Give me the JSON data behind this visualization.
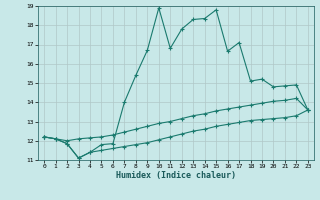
{
  "xlabel": "Humidex (Indice chaleur)",
  "bg_color": "#c8e8e8",
  "line_color": "#1a7a6e",
  "xlim": [
    -0.5,
    23.5
  ],
  "ylim": [
    11,
    19
  ],
  "xticks": [
    0,
    1,
    2,
    3,
    4,
    5,
    6,
    7,
    8,
    9,
    10,
    11,
    12,
    13,
    14,
    15,
    16,
    17,
    18,
    19,
    20,
    21,
    22,
    23
  ],
  "yticks": [
    11,
    12,
    13,
    14,
    15,
    16,
    17,
    18,
    19
  ],
  "series1_x": [
    0,
    1,
    2,
    3,
    4,
    5,
    6,
    7,
    8,
    9,
    10,
    11,
    12,
    13,
    14,
    15,
    16,
    17,
    18,
    19,
    20,
    21,
    22,
    23
  ],
  "series1_y": [
    12.2,
    12.1,
    11.85,
    11.1,
    11.4,
    11.8,
    11.85,
    14.0,
    15.4,
    16.7,
    18.9,
    16.8,
    17.8,
    18.3,
    18.35,
    18.8,
    16.65,
    17.1,
    15.1,
    15.2,
    14.8,
    14.85,
    14.9,
    13.6
  ],
  "series2_x": [
    0,
    1,
    2,
    3,
    4,
    5,
    6,
    7,
    8,
    9,
    10,
    11,
    12,
    13,
    14,
    15,
    16,
    17,
    18,
    19,
    20,
    21,
    22,
    23
  ],
  "series2_y": [
    12.2,
    12.1,
    12.0,
    12.1,
    12.15,
    12.2,
    12.3,
    12.45,
    12.6,
    12.75,
    12.9,
    13.0,
    13.15,
    13.3,
    13.4,
    13.55,
    13.65,
    13.75,
    13.85,
    13.95,
    14.05,
    14.1,
    14.2,
    13.6
  ],
  "series3_x": [
    0,
    1,
    2,
    3,
    4,
    5,
    6,
    7,
    8,
    9,
    10,
    11,
    12,
    13,
    14,
    15,
    16,
    17,
    18,
    19,
    20,
    21,
    22,
    23
  ],
  "series3_y": [
    12.2,
    12.1,
    11.85,
    11.1,
    11.4,
    11.5,
    11.6,
    11.7,
    11.8,
    11.9,
    12.05,
    12.2,
    12.35,
    12.5,
    12.6,
    12.75,
    12.85,
    12.95,
    13.05,
    13.1,
    13.15,
    13.2,
    13.3,
    13.6
  ]
}
